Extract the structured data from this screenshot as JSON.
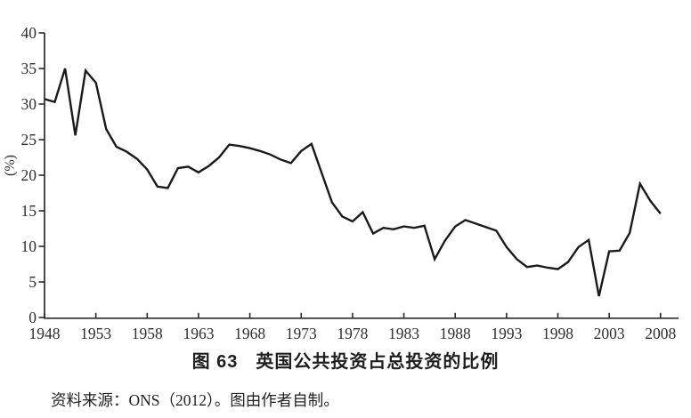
{
  "caption": {
    "number": "图 63",
    "title": "英国公共投资占总投资的比例"
  },
  "source_note": "资料来源：ONS（2012）。图由作者自制。",
  "chart_data": {
    "type": "line",
    "title": "图 63 英国公共投资占总投资的比例",
    "xlabel": "",
    "ylabel": "(%)",
    "ylim": [
      0,
      40
    ],
    "ytick_step": 5,
    "grid": false,
    "legend": "none",
    "line_color": "#1a1a1a",
    "axis_color": "#2a2a2a",
    "x_tick_years": [
      1948,
      1953,
      1958,
      1963,
      1968,
      1973,
      1978,
      1983,
      1988,
      1993,
      1998,
      2003,
      2008
    ],
    "years": [
      1948,
      1949,
      1950,
      1951,
      1952,
      1953,
      1954,
      1955,
      1956,
      1957,
      1958,
      1959,
      1960,
      1961,
      1962,
      1963,
      1964,
      1965,
      1966,
      1967,
      1968,
      1969,
      1970,
      1971,
      1972,
      1973,
      1974,
      1975,
      1976,
      1977,
      1978,
      1979,
      1980,
      1981,
      1982,
      1983,
      1984,
      1985,
      1986,
      1987,
      1988,
      1989,
      1990,
      1991,
      1992,
      1993,
      1994,
      1995,
      1996,
      1997,
      1998,
      1999,
      2000,
      2001,
      2002,
      2003,
      2004,
      2005,
      2006,
      2007,
      2008
    ],
    "values": [
      30.7,
      30.3,
      35.0,
      25.6,
      34.7,
      33.0,
      26.5,
      24.0,
      23.3,
      22.3,
      20.8,
      18.4,
      18.2,
      21.0,
      21.2,
      20.4,
      21.3,
      22.5,
      24.3,
      24.1,
      23.8,
      23.4,
      22.9,
      22.2,
      21.7,
      23.4,
      24.4,
      20.3,
      16.2,
      14.2,
      13.5,
      14.8,
      11.8,
      12.6,
      12.4,
      12.8,
      12.6,
      12.9,
      8.2,
      10.8,
      12.8,
      13.7,
      13.2,
      12.7,
      12.2,
      9.9,
      8.2,
      7.1,
      7.3,
      7.0,
      6.8,
      7.8,
      9.9,
      10.9,
      3.0,
      9.3,
      9.4,
      11.9,
      18.8,
      16.4,
      14.6
    ]
  }
}
